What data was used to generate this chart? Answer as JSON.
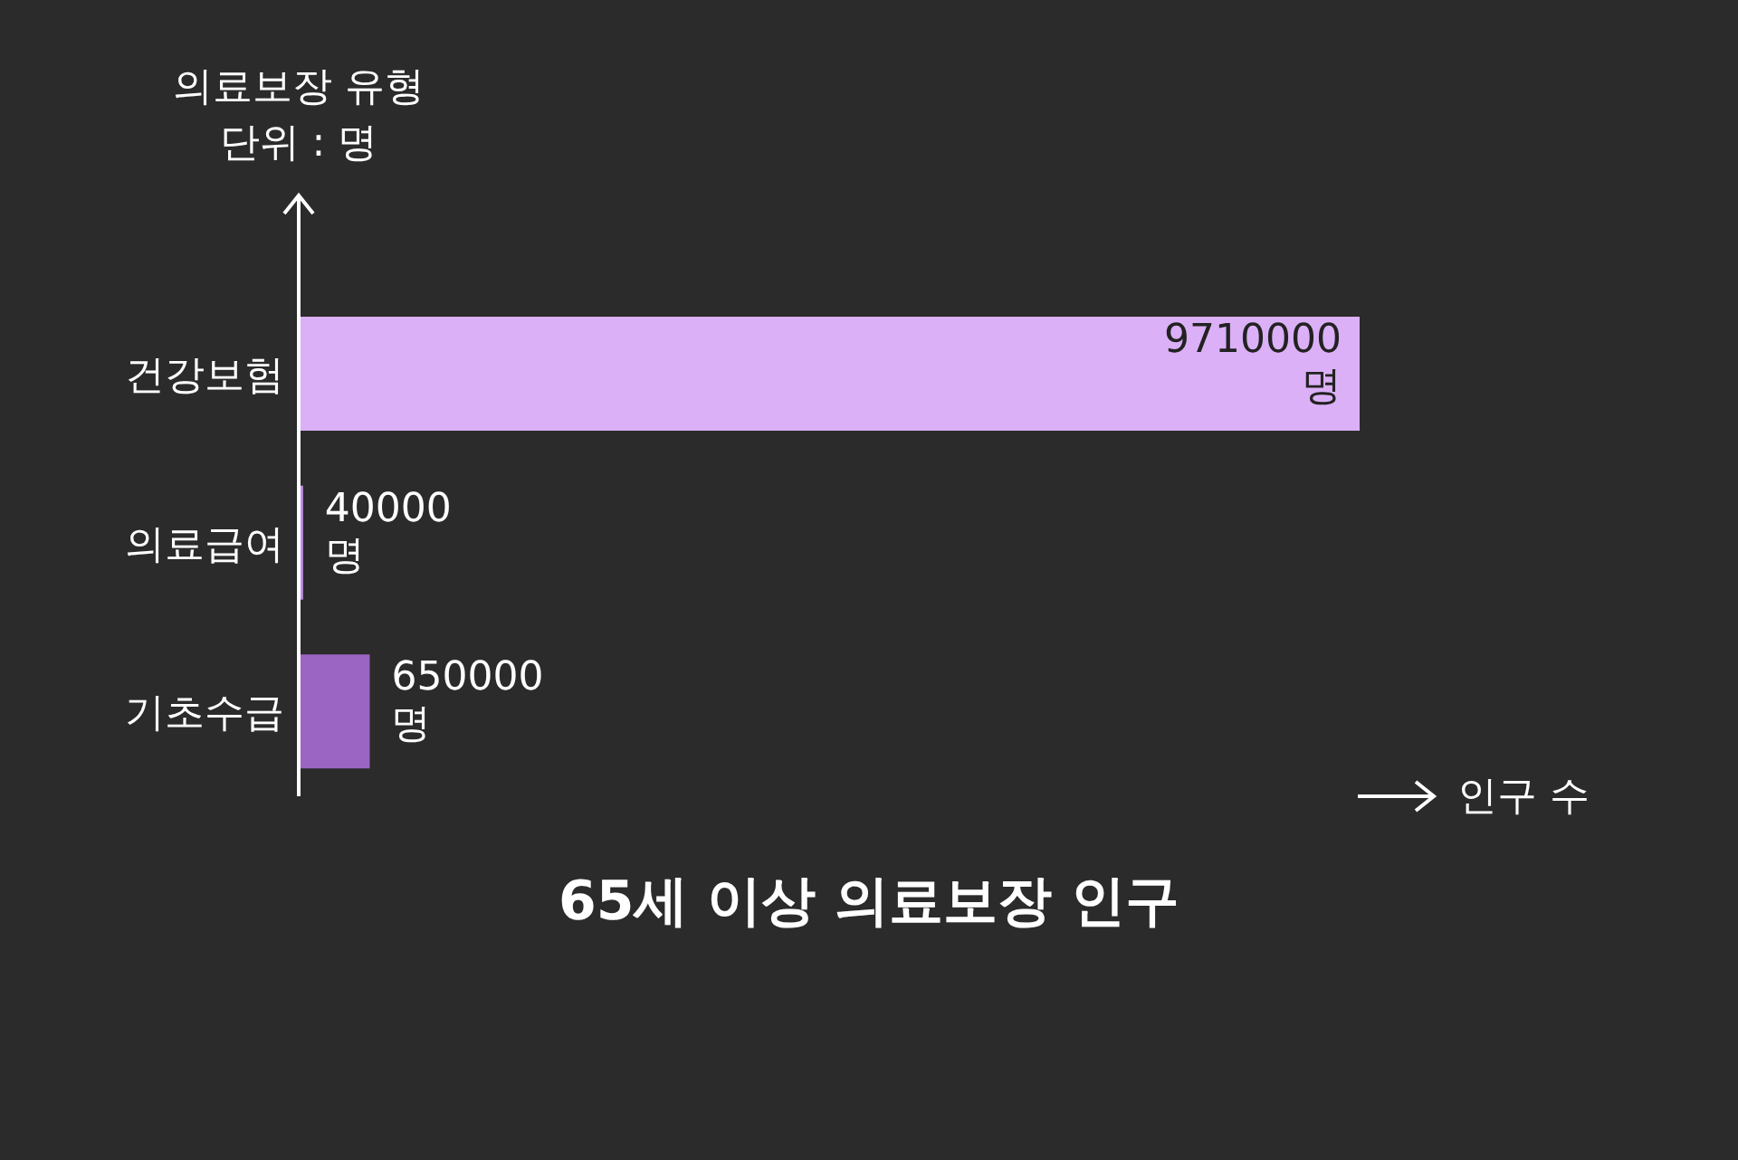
{
  "chart_data": {
    "type": "bar",
    "orientation": "horizontal",
    "title": "65세 이상 의료보장 인구",
    "ylabel": "의료보장 유형",
    "xlabel": "인구 수",
    "annotations": [
      "단위 : 명"
    ],
    "categories": [
      "건강보험",
      "의료급여",
      "기초수급"
    ],
    "values": [
      9710000,
      40000,
      650000
    ],
    "colors": [
      "#dbb0f7",
      "#c38fe8",
      "#9b65c4"
    ],
    "value_labels": [
      "9710000 명",
      "40000 명",
      "650000 명"
    ],
    "tick_labels": "y"
  }
}
